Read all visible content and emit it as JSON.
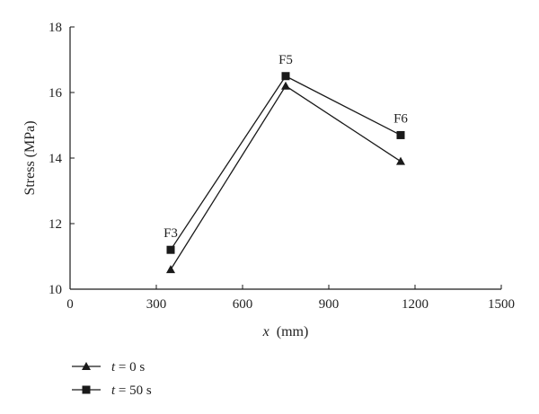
{
  "chart_data": {
    "type": "line",
    "xlabel_var": "x",
    "xlabel_unit": "(mm)",
    "ylabel": "Stress (MPa)",
    "xlim": [
      0,
      1500
    ],
    "ylim": [
      10,
      18
    ],
    "xticks": [
      0,
      300,
      600,
      900,
      1200,
      1500
    ],
    "yticks": [
      10,
      12,
      14,
      16,
      18
    ],
    "grid": false,
    "legend_position": "bottom-left",
    "x": [
      350,
      750,
      1150
    ],
    "point_labels": [
      "F3",
      "F5",
      "F6"
    ],
    "series": [
      {
        "name_var": "t",
        "name_rest": " = 0 s",
        "marker": "triangle",
        "values": [
          10.6,
          16.2,
          13.9
        ]
      },
      {
        "name_var": "t",
        "name_rest": " = 50 s",
        "marker": "square",
        "values": [
          11.2,
          16.5,
          14.7
        ]
      }
    ],
    "line_color": "#1a1a1a"
  }
}
